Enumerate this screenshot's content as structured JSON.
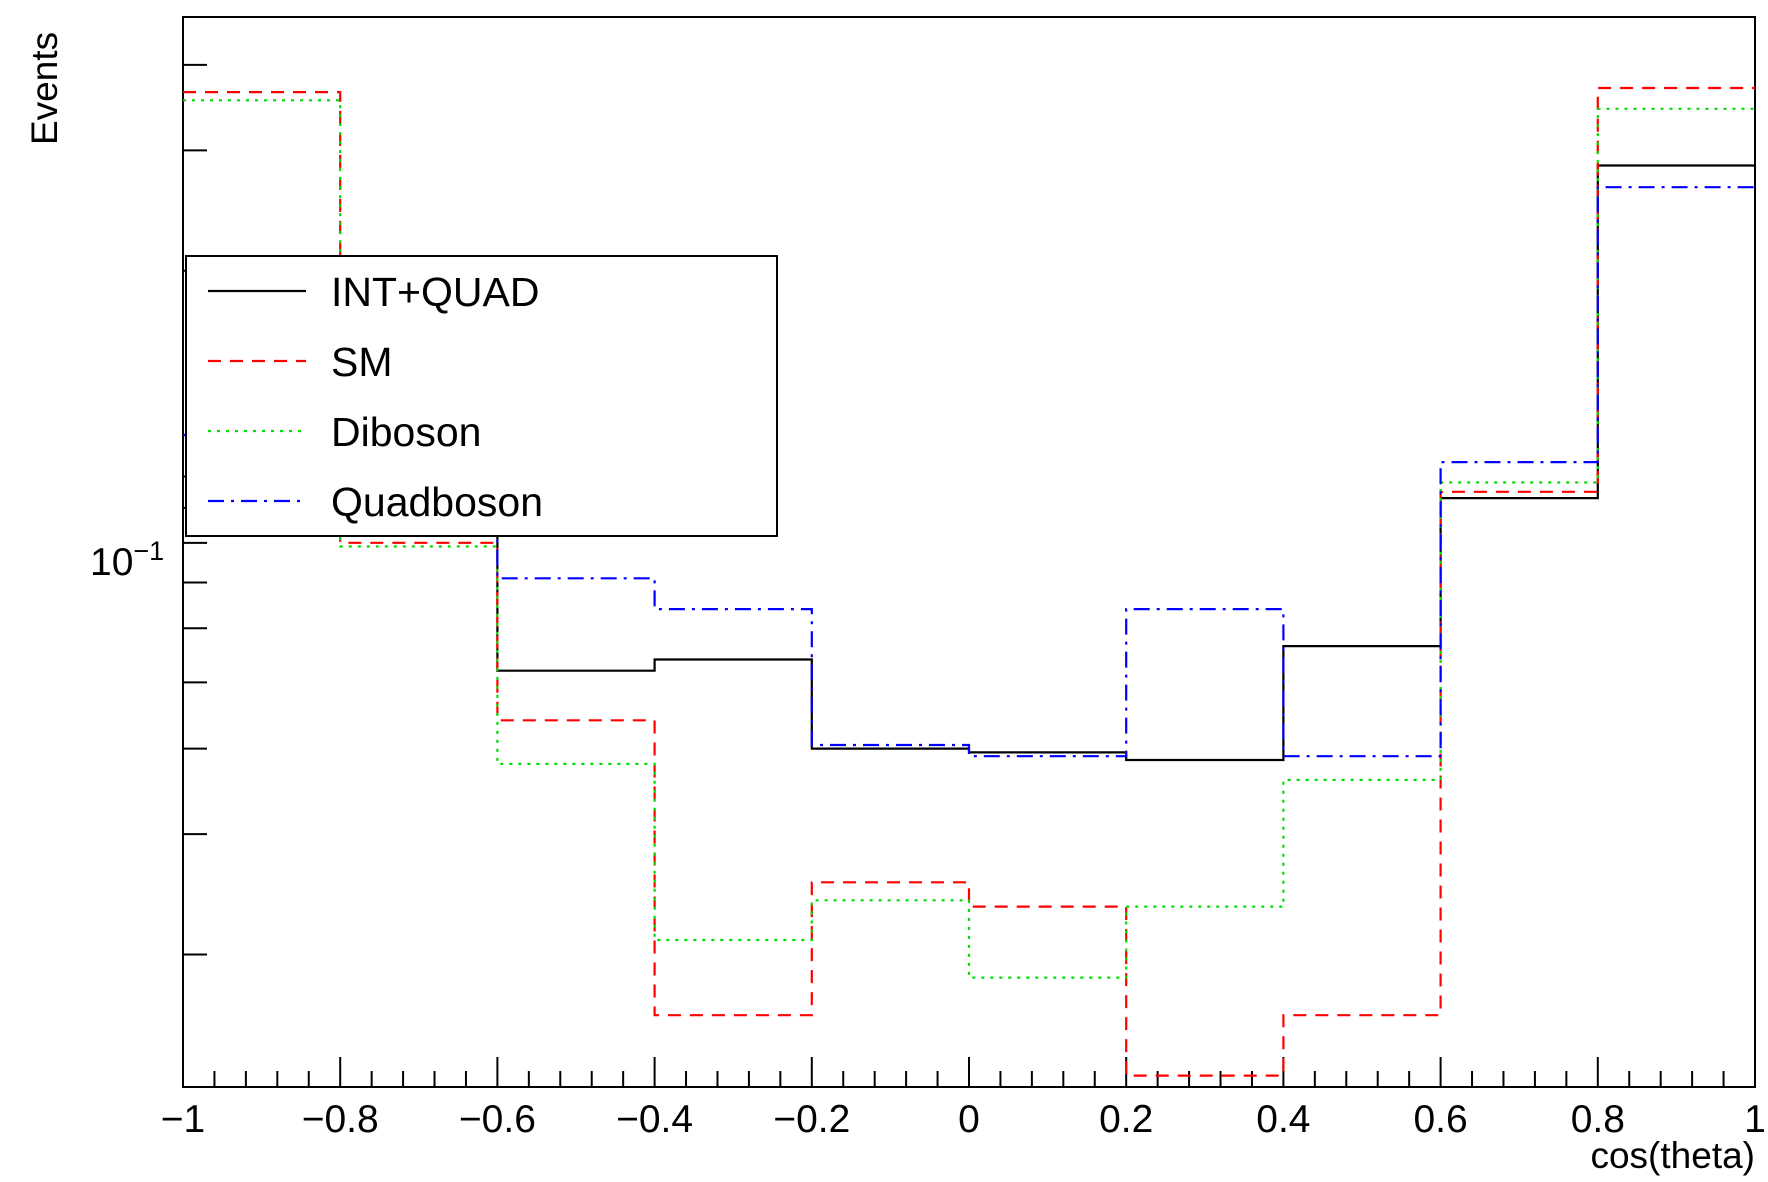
{
  "chart_data": {
    "type": "line",
    "title": "",
    "xlabel": "cos(theta)",
    "ylabel": "Events",
    "xlim": [
      -1,
      1
    ],
    "ylim": [
      0.0128,
      0.47
    ],
    "y_scale": "log",
    "grid": false,
    "legend_position": "upper-left",
    "x_ticks": [
      {
        "value": -1,
        "label": "−1"
      },
      {
        "value": -0.8,
        "label": "−0.8"
      },
      {
        "value": -0.6,
        "label": "−0.6"
      },
      {
        "value": -0.4,
        "label": "−0.4"
      },
      {
        "value": -0.2,
        "label": "−0.2"
      },
      {
        "value": 0,
        "label": "0"
      },
      {
        "value": 0.2,
        "label": "0.2"
      },
      {
        "value": 0.4,
        "label": "0.4"
      },
      {
        "value": 0.6,
        "label": "0.6"
      },
      {
        "value": 0.8,
        "label": "0.8"
      },
      {
        "value": 1,
        "label": "1"
      }
    ],
    "y_tick_label": {
      "value": 0.1,
      "base": "10",
      "exponent": "−1"
    },
    "bin_edges": [
      -1,
      -0.8,
      -0.6,
      -0.4,
      -0.2,
      0,
      0.2,
      0.4,
      0.6,
      0.8,
      1
    ],
    "series": [
      {
        "name": "INT+QUAD",
        "color": "#000000",
        "style": "solid",
        "values": [
          0.115,
          0.1,
          0.052,
          0.054,
          0.04,
          0.0395,
          0.0385,
          0.0565,
          0.093,
          0.285
        ]
      },
      {
        "name": "SM",
        "color": "#ff0000",
        "style": "dashed",
        "values": [
          0.365,
          0.08,
          0.044,
          0.0163,
          0.0255,
          0.0235,
          0.0133,
          0.0163,
          0.095,
          0.37
        ]
      },
      {
        "name": "Diboson",
        "color": "#00dd00",
        "style": "dotted",
        "values": [
          0.355,
          0.079,
          0.038,
          0.021,
          0.024,
          0.0185,
          0.0235,
          0.036,
          0.098,
          0.345
        ]
      },
      {
        "name": "Quadboson",
        "color": "#0000ff",
        "style": "dashdot",
        "values": [
          0.115,
          0.0935,
          0.071,
          0.064,
          0.0405,
          0.039,
          0.064,
          0.039,
          0.105,
          0.265
        ]
      }
    ]
  }
}
